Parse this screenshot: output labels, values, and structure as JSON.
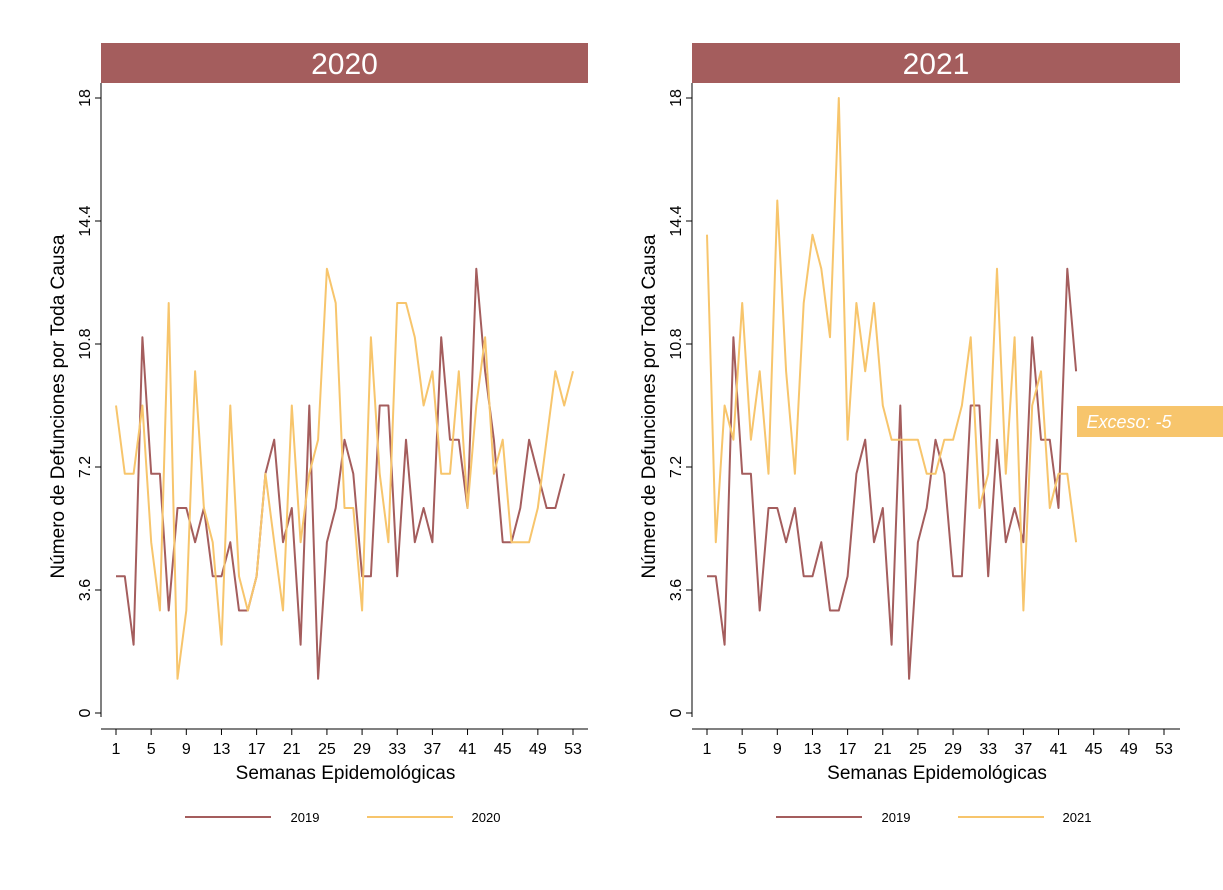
{
  "colors": {
    "header_bg": "#a45d5d",
    "series_2019": "#a45d5d",
    "series_current": "#f7c56c",
    "annotation_bg": "#f7c56c"
  },
  "chart_data": [
    {
      "type": "line",
      "title": "2020",
      "xlabel": "Semanas Epidemológicas",
      "ylabel": "Número de Defunciones por Toda Causa",
      "xlim": [
        1,
        53
      ],
      "ylim": [
        0,
        18
      ],
      "xticks": [
        1,
        5,
        9,
        13,
        17,
        21,
        25,
        29,
        33,
        37,
        41,
        45,
        49,
        53
      ],
      "yticks": [
        0,
        3.6,
        7.2,
        10.8,
        14.4,
        18
      ],
      "ytick_labels": [
        "0",
        "3.6",
        "7.2",
        "10.8",
        "14.4",
        "18"
      ],
      "grid": false,
      "legend_position": "bottom",
      "series": [
        {
          "name": "2019",
          "x": [
            1,
            2,
            3,
            4,
            5,
            6,
            7,
            8,
            9,
            10,
            11,
            12,
            13,
            14,
            15,
            16,
            17,
            18,
            19,
            20,
            21,
            22,
            23,
            24,
            25,
            26,
            27,
            28,
            29,
            30,
            31,
            32,
            33,
            34,
            35,
            36,
            37,
            38,
            39,
            40,
            41,
            42,
            43,
            44,
            45,
            46,
            47,
            48,
            49,
            50,
            51,
            52
          ],
          "values": [
            4,
            4,
            2,
            11,
            7,
            7,
            3,
            6,
            6,
            5,
            6,
            4,
            4,
            5,
            3,
            3,
            4,
            7,
            8,
            5,
            6,
            2,
            9,
            1,
            5,
            6,
            8,
            7,
            4,
            4,
            9,
            9,
            4,
            8,
            5,
            6,
            5,
            11,
            8,
            8,
            6,
            13,
            10,
            8,
            5,
            5,
            6,
            8,
            7,
            6,
            6,
            7
          ]
        },
        {
          "name": "2020",
          "x": [
            1,
            2,
            3,
            4,
            5,
            6,
            7,
            8,
            9,
            10,
            11,
            12,
            13,
            14,
            15,
            16,
            17,
            18,
            19,
            20,
            21,
            22,
            23,
            24,
            25,
            26,
            27,
            28,
            29,
            30,
            31,
            32,
            33,
            34,
            35,
            36,
            37,
            38,
            39,
            40,
            41,
            42,
            43,
            44,
            45,
            46,
            47,
            48,
            49,
            50,
            51,
            52,
            53
          ],
          "values": [
            9,
            7,
            7,
            9,
            5,
            3,
            12,
            1,
            3,
            10,
            6,
            5,
            2,
            9,
            4,
            3,
            4,
            7,
            5,
            3,
            9,
            5,
            7,
            8,
            13,
            12,
            6,
            6,
            3,
            11,
            7,
            5,
            12,
            12,
            11,
            9,
            10,
            7,
            7,
            10,
            6,
            9,
            11,
            7,
            8,
            5,
            5,
            5,
            6,
            8,
            10,
            9,
            10
          ]
        }
      ]
    },
    {
      "type": "line",
      "title": "2021",
      "xlabel": "Semanas Epidemológicas",
      "ylabel": "Número de Defunciones por Toda Causa",
      "xlim": [
        1,
        53
      ],
      "ylim": [
        0,
        18
      ],
      "xticks": [
        1,
        5,
        9,
        13,
        17,
        21,
        25,
        29,
        33,
        37,
        41,
        45,
        49,
        53
      ],
      "yticks": [
        0,
        3.6,
        7.2,
        10.8,
        14.4,
        18
      ],
      "ytick_labels": [
        "0",
        "3.6",
        "7.2",
        "10.8",
        "14.4",
        "18"
      ],
      "grid": false,
      "legend_position": "bottom",
      "annotation": "Exceso: -5",
      "series": [
        {
          "name": "2019",
          "x": [
            1,
            2,
            3,
            4,
            5,
            6,
            7,
            8,
            9,
            10,
            11,
            12,
            13,
            14,
            15,
            16,
            17,
            18,
            19,
            20,
            21,
            22,
            23,
            24,
            25,
            26,
            27,
            28,
            29,
            30,
            31,
            32,
            33,
            34,
            35,
            36,
            37,
            38,
            39,
            40,
            41,
            42,
            43
          ],
          "values": [
            4,
            4,
            2,
            11,
            7,
            7,
            3,
            6,
            6,
            5,
            6,
            4,
            4,
            5,
            3,
            3,
            4,
            7,
            8,
            5,
            6,
            2,
            9,
            1,
            5,
            6,
            8,
            7,
            4,
            4,
            9,
            9,
            4,
            8,
            5,
            6,
            5,
            11,
            8,
            8,
            6,
            13,
            10
          ]
        },
        {
          "name": "2021",
          "x": [
            1,
            2,
            3,
            4,
            5,
            6,
            7,
            8,
            9,
            10,
            11,
            12,
            13,
            14,
            15,
            16,
            17,
            18,
            19,
            20,
            21,
            22,
            23,
            24,
            25,
            26,
            27,
            28,
            29,
            30,
            31,
            32,
            33,
            34,
            35,
            36,
            37,
            38,
            39,
            40,
            41,
            42,
            43
          ],
          "values": [
            14,
            5,
            9,
            8,
            12,
            8,
            10,
            7,
            15,
            10,
            7,
            12,
            14,
            13,
            11,
            18,
            8,
            12,
            10,
            12,
            9,
            8,
            8,
            8,
            8,
            7,
            7,
            8,
            8,
            9,
            11,
            6,
            7,
            13,
            7,
            11,
            3,
            9,
            10,
            6,
            7,
            7,
            5
          ]
        }
      ]
    }
  ]
}
